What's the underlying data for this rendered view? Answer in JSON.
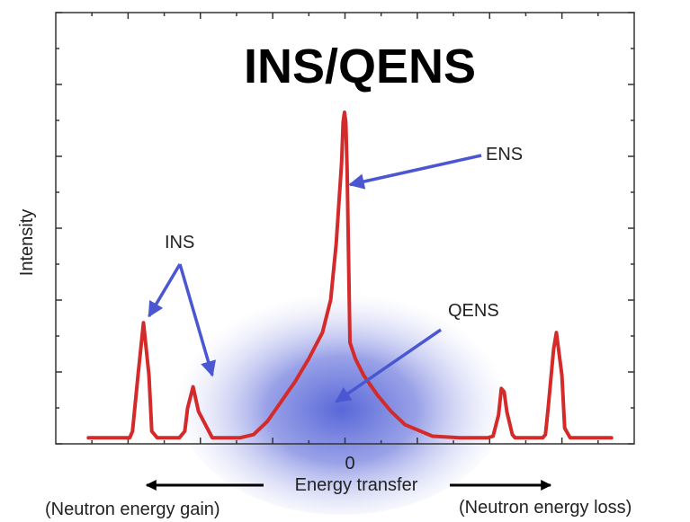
{
  "chart_data": {
    "type": "line",
    "title": "INS/QENS",
    "xlabel": "Energy transfer",
    "ylabel": "Intensity",
    "x_ticks": [
      {
        "value": 0,
        "label": "0"
      }
    ],
    "xlim": [
      -1,
      1
    ],
    "ylim": [
      0,
      1
    ],
    "grid": false,
    "series": [
      {
        "color": "#d42a2a",
        "x": [
          -0.95,
          -0.8,
          -0.79,
          -0.77,
          -0.75,
          -0.73,
          -0.72,
          -0.7,
          -0.62,
          -0.6,
          -0.59,
          -0.57,
          -0.55,
          -0.5,
          -0.4,
          -0.35,
          -0.3,
          -0.25,
          -0.2,
          -0.15,
          -0.1,
          -0.07,
          -0.05,
          -0.03,
          -0.025,
          -0.02,
          -0.015,
          -0.01,
          0.0,
          0.02,
          0.05,
          0.1,
          0.15,
          0.2,
          0.3,
          0.4,
          0.5,
          0.52,
          0.54,
          0.55,
          0.56,
          0.57,
          0.59,
          0.6,
          0.7,
          0.71,
          0.72,
          0.74,
          0.75,
          0.77,
          0.78,
          0.8,
          0.95
        ],
        "y": [
          0.01,
          0.01,
          0.03,
          0.2,
          0.36,
          0.2,
          0.03,
          0.01,
          0.01,
          0.03,
          0.1,
          0.165,
          0.09,
          0.01,
          0.01,
          0.02,
          0.06,
          0.12,
          0.18,
          0.25,
          0.33,
          0.43,
          0.6,
          0.85,
          0.97,
          1.0,
          0.97,
          0.82,
          0.3,
          0.25,
          0.2,
          0.14,
          0.09,
          0.05,
          0.015,
          0.01,
          0.01,
          0.015,
          0.08,
          0.16,
          0.15,
          0.09,
          0.02,
          0.01,
          0.01,
          0.02,
          0.1,
          0.28,
          0.33,
          0.2,
          0.04,
          0.01,
          0.01
        ]
      }
    ],
    "annotations": [
      {
        "text": "ENS",
        "x": 0.45,
        "y": 0.87,
        "arrow_to": [
          {
            "x": 0.0,
            "y": 0.78
          }
        ]
      },
      {
        "text": "INS",
        "x": -0.53,
        "y": 0.6,
        "arrow_to": [
          {
            "x": -0.73,
            "y": 0.38
          },
          {
            "x": -0.5,
            "y": 0.2
          }
        ]
      },
      {
        "text": "QENS",
        "x": 0.45,
        "y": 0.41,
        "arrow_to": [
          {
            "x": -0.05,
            "y": 0.12
          }
        ]
      }
    ],
    "qens_glow_color": "#4f5fd6",
    "arrow_color": "#4a57d0",
    "direction_labels": {
      "left": "(Neutron energy gain)",
      "right": "(Neutron energy loss)"
    }
  }
}
